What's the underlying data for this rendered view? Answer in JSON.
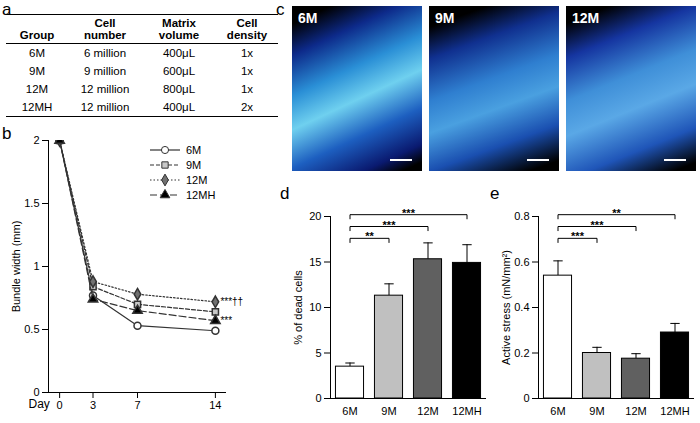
{
  "chart_data": [
    {
      "type": "table",
      "panel_label": "a",
      "columns": [
        "Group",
        "Cell number",
        "Matrix volume",
        "Cell density"
      ],
      "rows": [
        [
          "6M",
          "6 million",
          "400μL",
          "1x"
        ],
        [
          "9M",
          "9 million",
          "600μL",
          "1x"
        ],
        [
          "12M",
          "12 million",
          "800μL",
          "1x"
        ],
        [
          "12MH",
          "12 million",
          "400μL",
          "2x"
        ]
      ]
    },
    {
      "type": "line",
      "panel_label": "b",
      "x_label": "Day",
      "y_label": "Bundle width (mm)",
      "x": [
        0,
        3,
        7,
        14
      ],
      "xlim": [
        -1,
        15
      ],
      "xticks": [
        0,
        3,
        7,
        14
      ],
      "ylim": [
        0,
        2
      ],
      "yticks": [
        0,
        0.5,
        1,
        1.5,
        2
      ],
      "legend": "top-right",
      "series": [
        {
          "name": "6M",
          "color": "#ffffff",
          "marker": "circle",
          "line_style": "solid",
          "values": [
            2,
            0.77,
            0.53,
            0.49
          ]
        },
        {
          "name": "9M",
          "color": "#c8c8c8",
          "marker": "square",
          "line_style": "dashed",
          "values": [
            2,
            0.84,
            0.7,
            0.64
          ]
        },
        {
          "name": "12M",
          "color": "#707070",
          "marker": "diamond",
          "line_style": "dotted",
          "values": [
            2,
            0.88,
            0.78,
            0.72
          ]
        },
        {
          "name": "12MH",
          "color": "#000000",
          "marker": "triangle",
          "line_style": "longdash",
          "values": [
            2,
            0.74,
            0.65,
            0.57
          ]
        }
      ],
      "annotations": [
        {
          "series": "12M",
          "text": "***††"
        },
        {
          "series": "12MH",
          "text": "***"
        }
      ]
    },
    {
      "type": "image",
      "panel_label": "c",
      "labels": [
        "6M",
        "9M",
        "12M"
      ]
    },
    {
      "type": "bar",
      "panel_label": "d",
      "y_label": "% of dead cells",
      "categories": [
        "6M",
        "9M",
        "12M",
        "12MH"
      ],
      "values": [
        3.5,
        11.3,
        15.3,
        14.9
      ],
      "errors": [
        0.4,
        1.3,
        1.8,
        2.0
      ],
      "colors": [
        "#ffffff",
        "#c0c0c0",
        "#606060",
        "#000000"
      ],
      "ylim": [
        0,
        20
      ],
      "yticks": [
        0,
        5,
        10,
        15,
        20
      ],
      "annotations": [
        {
          "from": "6M",
          "to": "9M",
          "text": "**"
        },
        {
          "from": "6M",
          "to": "12M",
          "text": "***"
        },
        {
          "from": "6M",
          "to": "12MH",
          "text": "***"
        }
      ]
    },
    {
      "type": "bar",
      "panel_label": "e",
      "y_label": "Active stress (mN/mm²)",
      "categories": [
        "6M",
        "9M",
        "12M",
        "12MH"
      ],
      "values": [
        0.54,
        0.2,
        0.175,
        0.29
      ],
      "errors": [
        0.065,
        0.025,
        0.022,
        0.04
      ],
      "colors": [
        "#ffffff",
        "#c0c0c0",
        "#606060",
        "#000000"
      ],
      "ylim": [
        0,
        0.8
      ],
      "yticks": [
        0,
        0.2,
        0.4,
        0.6,
        0.8
      ],
      "annotations": [
        {
          "from": "6M",
          "to": "9M",
          "text": "***"
        },
        {
          "from": "6M",
          "to": "12M",
          "text": "***"
        },
        {
          "from": "6M",
          "to": "12MH",
          "text": "**"
        }
      ]
    }
  ]
}
